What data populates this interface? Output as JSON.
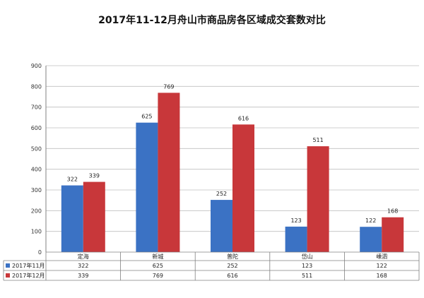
{
  "chart_data": {
    "type": "bar",
    "title": "2017年11-12月舟山市商品房各区域成交套数对比",
    "categories": [
      "定海",
      "新城",
      "普陀",
      "岱山",
      "嵊泗"
    ],
    "series": [
      {
        "name": "2017年11月",
        "values": [
          322,
          625,
          252,
          123,
          122
        ],
        "color": "#3B72C4"
      },
      {
        "name": "2017年12月",
        "values": [
          339,
          769,
          616,
          511,
          168
        ],
        "color": "#C8373A"
      }
    ],
    "ylim": [
      0,
      900
    ],
    "yticks": [
      0,
      100,
      200,
      300,
      400,
      500,
      600,
      700,
      800,
      900
    ],
    "grid": true,
    "legend": "data-table-left"
  }
}
